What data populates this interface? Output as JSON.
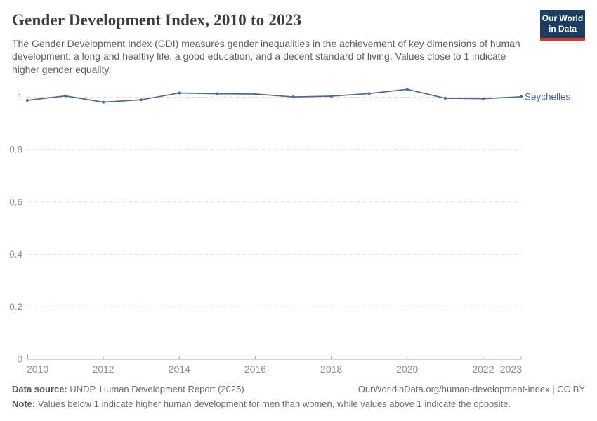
{
  "header": {
    "title": "Gender Development Index, 2010 to 2023",
    "subtitle": "The Gender Development Index (GDI) measures gender inequalities in the achievement of key dimensions of human development: a long and healthy life, a good education, and a decent standard of living. Values close to 1 indicate higher gender equality.",
    "logo": {
      "line1": "Our World",
      "line2": "in Data",
      "bg_color": "#1d3d63",
      "bar_color": "#dc352b"
    }
  },
  "chart_data": {
    "type": "line",
    "title": "Gender Development Index, 2010 to 2023",
    "x": [
      2010,
      2011,
      2012,
      2013,
      2014,
      2015,
      2016,
      2017,
      2018,
      2019,
      2020,
      2021,
      2022,
      2023
    ],
    "series": [
      {
        "name": "Seychelles",
        "color": "#4c6a9c",
        "values": [
          0.988,
          1.005,
          0.981,
          0.99,
          1.016,
          1.013,
          1.012,
          1.001,
          1.004,
          1.014,
          1.03,
          0.996,
          0.994,
          1.002
        ]
      }
    ],
    "xlabel": "",
    "ylabel": "",
    "xlim": [
      2010,
      2023
    ],
    "ylim": [
      0,
      1.05
    ],
    "xticks": [
      2010,
      2012,
      2014,
      2016,
      2018,
      2020,
      2022,
      2023
    ],
    "yticks": [
      0,
      0.2,
      0.4,
      0.6,
      0.8,
      1
    ],
    "ytick_labels": [
      "0",
      "0.2",
      "0.4",
      "0.6",
      "0.8",
      "1"
    ],
    "grid": "horizontal-dashed",
    "legend_position": "end-of-line-label",
    "end_label": "Seychelles",
    "axis_color": "#a5a5a5",
    "grid_color": "#dcdcdc",
    "tick_label_color": "#8f8f8f"
  },
  "footer": {
    "datasource_label": "Data source:",
    "datasource_value": " UNDP, Human Development Report (2025)",
    "link": "OurWorldinData.org/human-development-index | CC BY",
    "note_label": "Note:",
    "note_value": " Values below 1 indicate higher human development for men than women, while values above 1 indicate the opposite."
  }
}
